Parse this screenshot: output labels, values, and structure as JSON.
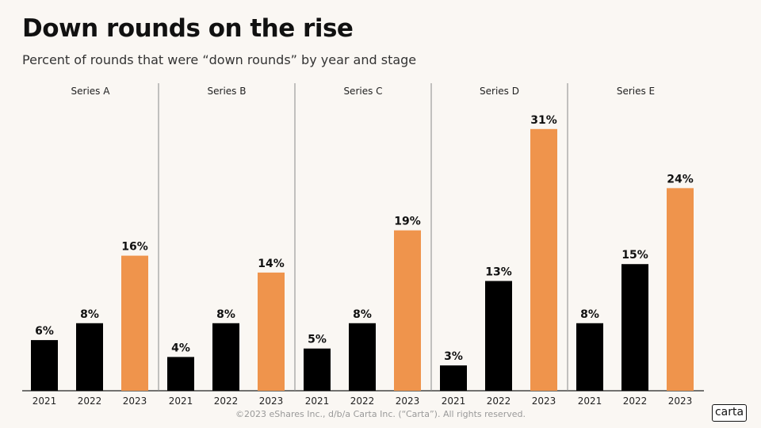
{
  "title": "Down rounds on the rise",
  "subtitle": "Percent of rounds that were “down rounds” by year and stage",
  "footer": "©2023 eShares Inc., d/b/a Carta Inc. (“Carta”). All rights reserved.",
  "logo_text": "carta",
  "colors": {
    "past": "#000000",
    "current": "#ef944c",
    "background": "#faf7f3"
  },
  "chart_data": {
    "type": "bar",
    "title": "Down rounds on the rise",
    "subtitle": "Percent of rounds that were “down rounds” by year and stage",
    "categories": [
      "2021",
      "2022",
      "2023"
    ],
    "ylim": [
      0,
      33
    ],
    "grid": false,
    "panels": [
      {
        "name": "Series A",
        "values": [
          6,
          8,
          16
        ],
        "labels": [
          "6%",
          "8%",
          "16%"
        ]
      },
      {
        "name": "Series B",
        "values": [
          4,
          8,
          14
        ],
        "labels": [
          "4%",
          "8%",
          "14%"
        ]
      },
      {
        "name": "Series C",
        "values": [
          5,
          8,
          19
        ],
        "labels": [
          "5%",
          "8%",
          "19%"
        ]
      },
      {
        "name": "Series D",
        "values": [
          3,
          13,
          31
        ],
        "labels": [
          "3%",
          "13%",
          "31%"
        ]
      },
      {
        "name": "Series E",
        "values": [
          8,
          15,
          24
        ],
        "labels": [
          "8%",
          "15%",
          "24%"
        ]
      }
    ]
  }
}
